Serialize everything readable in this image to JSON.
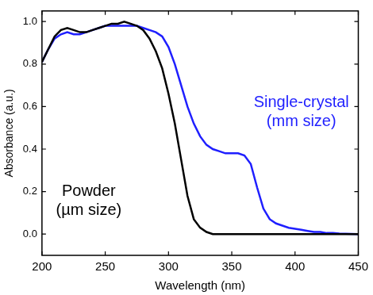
{
  "chart_data": {
    "type": "line",
    "x_label": "Wavelength (nm)",
    "y_label": "Absorbance (a.u.)",
    "x": [
      200,
      205,
      210,
      215,
      220,
      225,
      230,
      235,
      240,
      245,
      250,
      255,
      260,
      265,
      270,
      275,
      280,
      285,
      290,
      295,
      300,
      305,
      310,
      315,
      320,
      325,
      330,
      335,
      340,
      345,
      350,
      355,
      360,
      365,
      370,
      375,
      380,
      385,
      390,
      395,
      400,
      405,
      410,
      415,
      420,
      425,
      430,
      435,
      440,
      445,
      450
    ],
    "series": [
      {
        "name": "Powder",
        "color": "#000000",
        "values": [
          0.81,
          0.87,
          0.93,
          0.96,
          0.97,
          0.96,
          0.95,
          0.95,
          0.96,
          0.97,
          0.98,
          0.99,
          0.99,
          1.0,
          0.99,
          0.98,
          0.96,
          0.92,
          0.86,
          0.78,
          0.66,
          0.52,
          0.35,
          0.18,
          0.07,
          0.03,
          0.01,
          0.0,
          0.0,
          0.0,
          0.0,
          0.0,
          0.0,
          0.0,
          0.0,
          0.0,
          0.0,
          0.0,
          0.0,
          0.0,
          0.0,
          0.0,
          0.0,
          0.0,
          0.0,
          0.0,
          0.0,
          0.0,
          0.0,
          0.0,
          0.0
        ]
      },
      {
        "name": "Single-crystal",
        "color": "#1f1fff",
        "values": [
          0.81,
          0.87,
          0.92,
          0.94,
          0.95,
          0.94,
          0.94,
          0.95,
          0.96,
          0.97,
          0.98,
          0.98,
          0.98,
          0.98,
          0.98,
          0.98,
          0.97,
          0.96,
          0.95,
          0.93,
          0.88,
          0.8,
          0.7,
          0.6,
          0.52,
          0.46,
          0.42,
          0.4,
          0.39,
          0.38,
          0.38,
          0.38,
          0.37,
          0.33,
          0.22,
          0.12,
          0.07,
          0.05,
          0.04,
          0.03,
          0.025,
          0.02,
          0.015,
          0.01,
          0.01,
          0.005,
          0.005,
          0.003,
          0.002,
          0.001,
          0.0
        ]
      }
    ],
    "annotations": [
      {
        "lines": [
          "Powder",
          "(µm size)"
        ],
        "color": "#000000"
      },
      {
        "lines": [
          "Single-crystal",
          "(mm size)"
        ],
        "color": "#1f1fff"
      }
    ],
    "xlim": [
      200,
      450
    ],
    "xticks": [
      200,
      250,
      300,
      350,
      400,
      450
    ],
    "ylim": [
      -0.1,
      1.05
    ],
    "yticks": [
      {
        "value": 0,
        "label": "0.0"
      },
      {
        "value": 0.2,
        "label": "0.2"
      },
      {
        "value": 0.4,
        "label": "0.4"
      },
      {
        "value": 0.6,
        "label": "0.6"
      },
      {
        "value": 0.8,
        "label": "0.8"
      },
      {
        "value": 1,
        "label": "1.0"
      }
    ],
    "grid": false
  }
}
